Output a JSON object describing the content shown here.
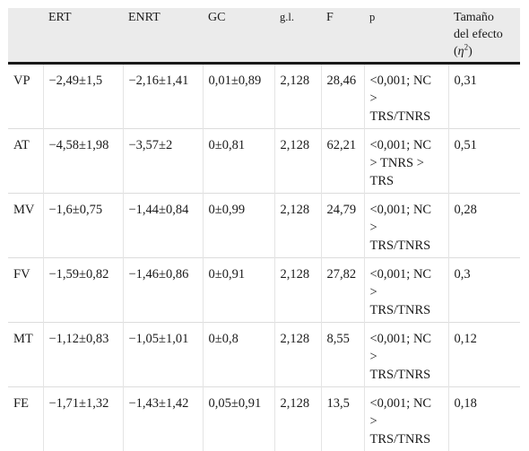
{
  "table": {
    "headers": [
      "",
      "ERT",
      "ENRT",
      "GC",
      "g.l.",
      "F",
      "p"
    ],
    "effect_header": {
      "line1": "Tamaño",
      "line2": "del efecto",
      "symbol_open": "(",
      "symbol": "η",
      "exponent": "2",
      "symbol_close": ")"
    },
    "rows": [
      {
        "label": "VP",
        "ert": "−2,49±1,5",
        "enrt": "−2,16±1,41",
        "gc": "0,01±0,89",
        "gl": "2,128",
        "f": "28,46",
        "p": [
          "<0,001; NC",
          ">",
          "TRS/TNRS"
        ],
        "effect": "0,31"
      },
      {
        "label": "AT",
        "ert": "−4,58±1,98",
        "enrt": "−3,57±2",
        "gc": "0±0,81",
        "gl": "2,128",
        "f": "62,21",
        "p": [
          "<0,001; NC",
          "> TNRS >",
          "TRS"
        ],
        "effect": "0,51"
      },
      {
        "label": "MV",
        "ert": "−1,6±0,75",
        "enrt": "−1,44±0,84",
        "gc": "0±0,99",
        "gl": "2,128",
        "f": "24,79",
        "p": [
          "<0,001; NC",
          ">",
          "TRS/TNRS"
        ],
        "effect": "0,28"
      },
      {
        "label": "FV",
        "ert": "−1,59±0,82",
        "enrt": "−1,46±0,86",
        "gc": "0±0,91",
        "gl": "2,128",
        "f": "27,82",
        "p": [
          "<0,001; NC",
          ">",
          "TRS/TNRS"
        ],
        "effect": "0,3"
      },
      {
        "label": "MT",
        "ert": "−1,12±0,83",
        "enrt": "−1,05±1,01",
        "gc": "0±0,8",
        "gl": "2,128",
        "f": "8,55",
        "p": [
          "<0,001; NC",
          ">",
          "TRS/TNRS"
        ],
        "effect": "0,12"
      },
      {
        "label": "FE",
        "ert": "−1,71±1,32",
        "enrt": "−1,43±1,42",
        "gc": "0,05±0,91",
        "gl": "2,128",
        "f": "13,5",
        "p": [
          "<0,001; NC",
          ">",
          "TRS/TNRS"
        ],
        "effect": "0,18"
      }
    ]
  }
}
